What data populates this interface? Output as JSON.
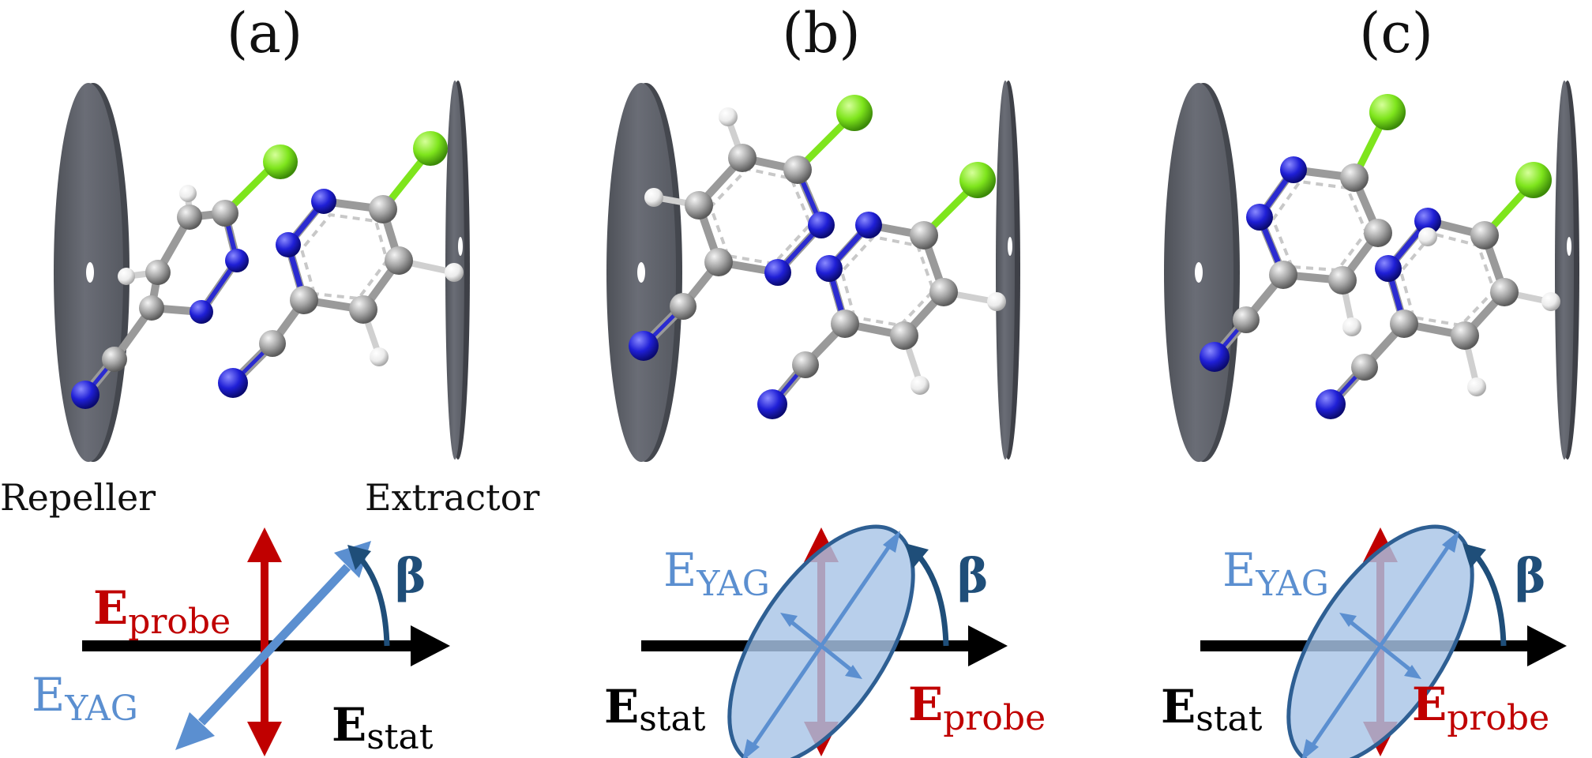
{
  "colors": {
    "plate": "#63666f",
    "plate_dark": "#454850",
    "nitrogen": "#1f1fd6",
    "carbon": "#a0a0a0",
    "hydrogen": "#f2f2f2",
    "chlorine": "#7ee51c",
    "probe_red": "#c00000",
    "yag_blue": "#5b8fd0",
    "beta_navy": "#1f4e79",
    "ellipse_fill": "#a8c4e6",
    "ellipse_stroke": "#2e5f93",
    "stat_black": "#000000"
  },
  "panels": [
    {
      "label": "(a)",
      "plates": {
        "left": "Repeller",
        "right": "Extractor"
      },
      "fields": {
        "probe": {
          "main": "E",
          "sub": "probe"
        },
        "yag": {
          "main": "E",
          "sub": "YAG"
        },
        "stat": {
          "main": "E",
          "sub": "stat"
        },
        "angle": "β"
      }
    },
    {
      "label": "(b)",
      "fields": {
        "probe": {
          "main": "E",
          "sub": "probe"
        },
        "yag": {
          "main": "E",
          "sub": "YAG"
        },
        "stat": {
          "main": "E",
          "sub": "stat"
        },
        "angle": "β"
      }
    },
    {
      "label": "(c)",
      "fields": {
        "probe": {
          "main": "E",
          "sub": "probe"
        },
        "yag": {
          "main": "E",
          "sub": "YAG"
        },
        "stat": {
          "main": "E",
          "sub": "stat"
        },
        "angle": "β"
      }
    }
  ]
}
